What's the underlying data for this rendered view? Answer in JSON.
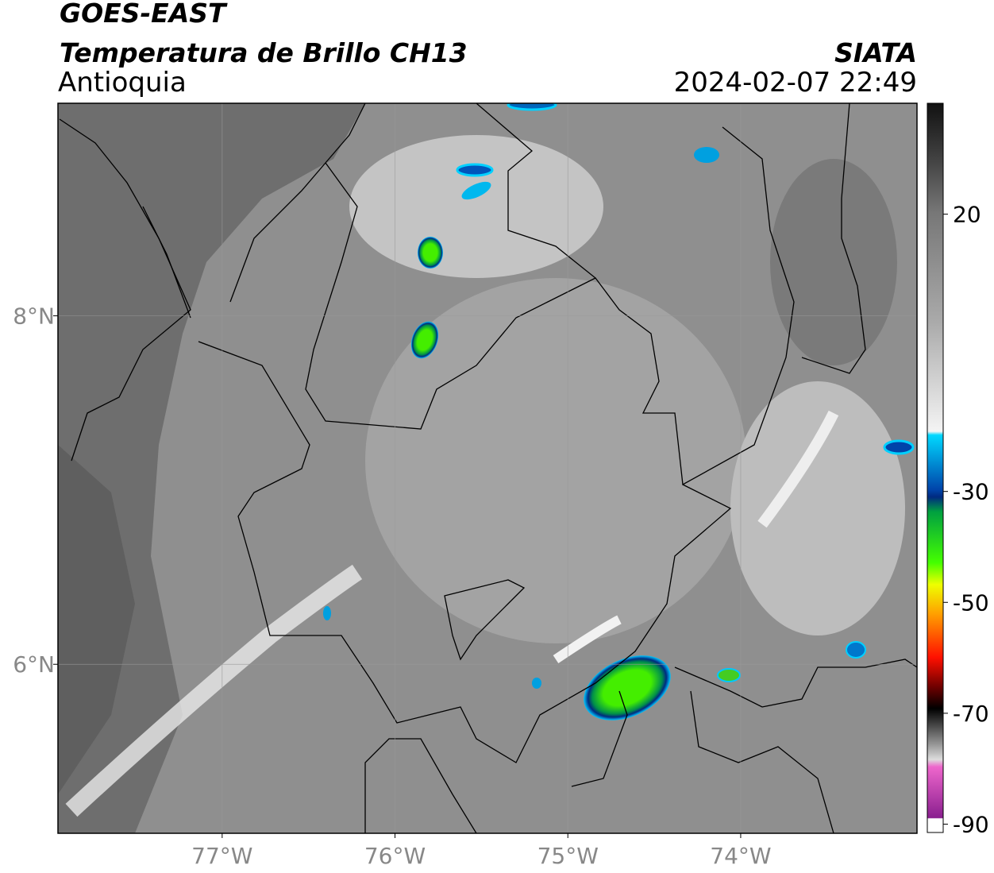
{
  "header": {
    "title": "GOES-EAST",
    "subtitle": "Temperatura de Brillo CH13",
    "region": "Antioquia",
    "source": "SIATA",
    "datetime": "2024-02-07 22:49"
  },
  "map": {
    "xlim": [
      -77.95,
      -72.98
    ],
    "ylim": [
      5.03,
      9.22
    ],
    "xticks": [
      {
        "value": -77,
        "label": "77°W"
      },
      {
        "value": -76,
        "label": "76°W"
      },
      {
        "value": -75,
        "label": "75°W"
      },
      {
        "value": -74,
        "label": "74°W"
      }
    ],
    "yticks": [
      {
        "value": 8,
        "label": "8°N"
      },
      {
        "value": 6,
        "label": "6°N"
      }
    ],
    "grid": true
  },
  "colorbar": {
    "lim": [
      -91.5,
      40
    ],
    "ticks": [
      20,
      -30,
      -50,
      -70,
      -90
    ]
  }
}
